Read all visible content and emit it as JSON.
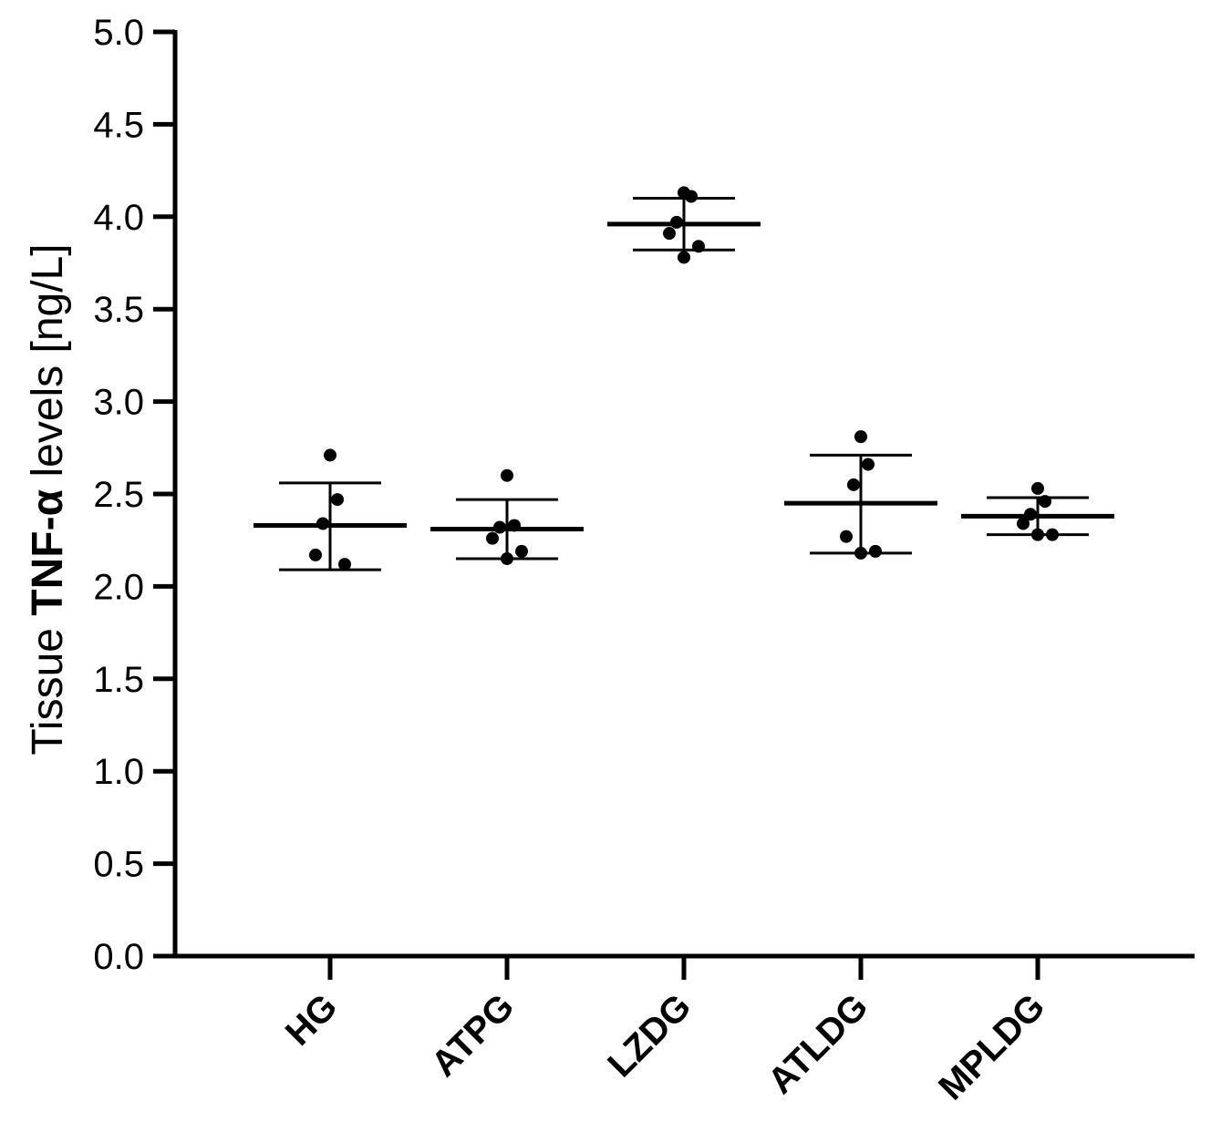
{
  "chart_data": {
    "type": "scatter",
    "ylabel": {
      "prefix": "Tissue ",
      "bold": "TNF-α",
      "suffix": " levels [ng/L]"
    },
    "ylim": [
      0,
      5
    ],
    "yticks": [
      "0.0",
      "0.5",
      "1.0",
      "1.5",
      "2.0",
      "2.5",
      "3.0",
      "3.5",
      "4.0",
      "4.5",
      "5.0"
    ],
    "categories": [
      "HG",
      "ATPG",
      "LZDG",
      "ATLDG",
      "MPLDG"
    ],
    "groups": [
      {
        "name": "HG",
        "mean": 2.33,
        "sd_low": 2.09,
        "sd_high": 2.56,
        "points": [
          2.71,
          2.47,
          2.34,
          2.17,
          2.12
        ]
      },
      {
        "name": "ATPG",
        "mean": 2.31,
        "sd_low": 2.15,
        "sd_high": 2.47,
        "points": [
          2.6,
          2.33,
          2.32,
          2.26,
          2.19,
          2.15
        ]
      },
      {
        "name": "LZDG",
        "mean": 3.96,
        "sd_low": 3.82,
        "sd_high": 4.1,
        "points": [
          4.13,
          4.11,
          3.97,
          3.91,
          3.84,
          3.78
        ]
      },
      {
        "name": "ATLDG",
        "mean": 2.45,
        "sd_low": 2.18,
        "sd_high": 2.71,
        "points": [
          2.81,
          2.66,
          2.55,
          2.27,
          2.19,
          2.18
        ]
      },
      {
        "name": "MPLDG",
        "mean": 2.38,
        "sd_low": 2.28,
        "sd_high": 2.48,
        "points": [
          2.53,
          2.46,
          2.39,
          2.34,
          2.28,
          2.28
        ]
      }
    ],
    "grid": false,
    "legend": "none",
    "color": "#000000"
  }
}
